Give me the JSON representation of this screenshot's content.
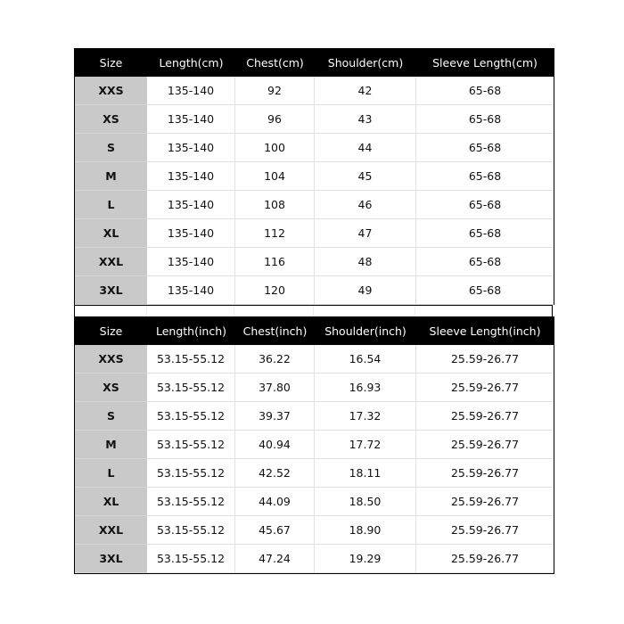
{
  "tables": [
    {
      "headers": [
        "Size",
        "Length(cm)",
        "Chest(cm)",
        "Shoulder(cm)",
        "Sleeve Length(cm)"
      ],
      "rows": [
        [
          "XXS",
          "135-140",
          "92",
          "42",
          "65-68"
        ],
        [
          "XS",
          "135-140",
          "96",
          "43",
          "65-68"
        ],
        [
          "S",
          "135-140",
          "100",
          "44",
          "65-68"
        ],
        [
          "M",
          "135-140",
          "104",
          "45",
          "65-68"
        ],
        [
          "L",
          "135-140",
          "108",
          "46",
          "65-68"
        ],
        [
          "XL",
          "135-140",
          "112",
          "47",
          "65-68"
        ],
        [
          "XXL",
          "135-140",
          "116",
          "48",
          "65-68"
        ],
        [
          "3XL",
          "135-140",
          "120",
          "49",
          "65-68"
        ]
      ]
    },
    {
      "headers": [
        "Size",
        "Length(inch)",
        "Chest(inch)",
        "Shoulder(inch)",
        "Sleeve Length(inch)"
      ],
      "rows": [
        [
          "XXS",
          "53.15-55.12",
          "36.22",
          "16.54",
          "25.59-26.77"
        ],
        [
          "XS",
          "53.15-55.12",
          "37.80",
          "16.93",
          "25.59-26.77"
        ],
        [
          "S",
          "53.15-55.12",
          "39.37",
          "17.32",
          "25.59-26.77"
        ],
        [
          "M",
          "53.15-55.12",
          "40.94",
          "17.72",
          "25.59-26.77"
        ],
        [
          "L",
          "53.15-55.12",
          "42.52",
          "18.11",
          "25.59-26.77"
        ],
        [
          "XL",
          "53.15-55.12",
          "44.09",
          "18.50",
          "25.59-26.77"
        ],
        [
          "XXL",
          "53.15-55.12",
          "45.67",
          "18.90",
          "25.59-26.77"
        ],
        [
          "3XL",
          "53.15-55.12",
          "47.24",
          "19.29",
          "25.59-26.77"
        ]
      ]
    }
  ]
}
